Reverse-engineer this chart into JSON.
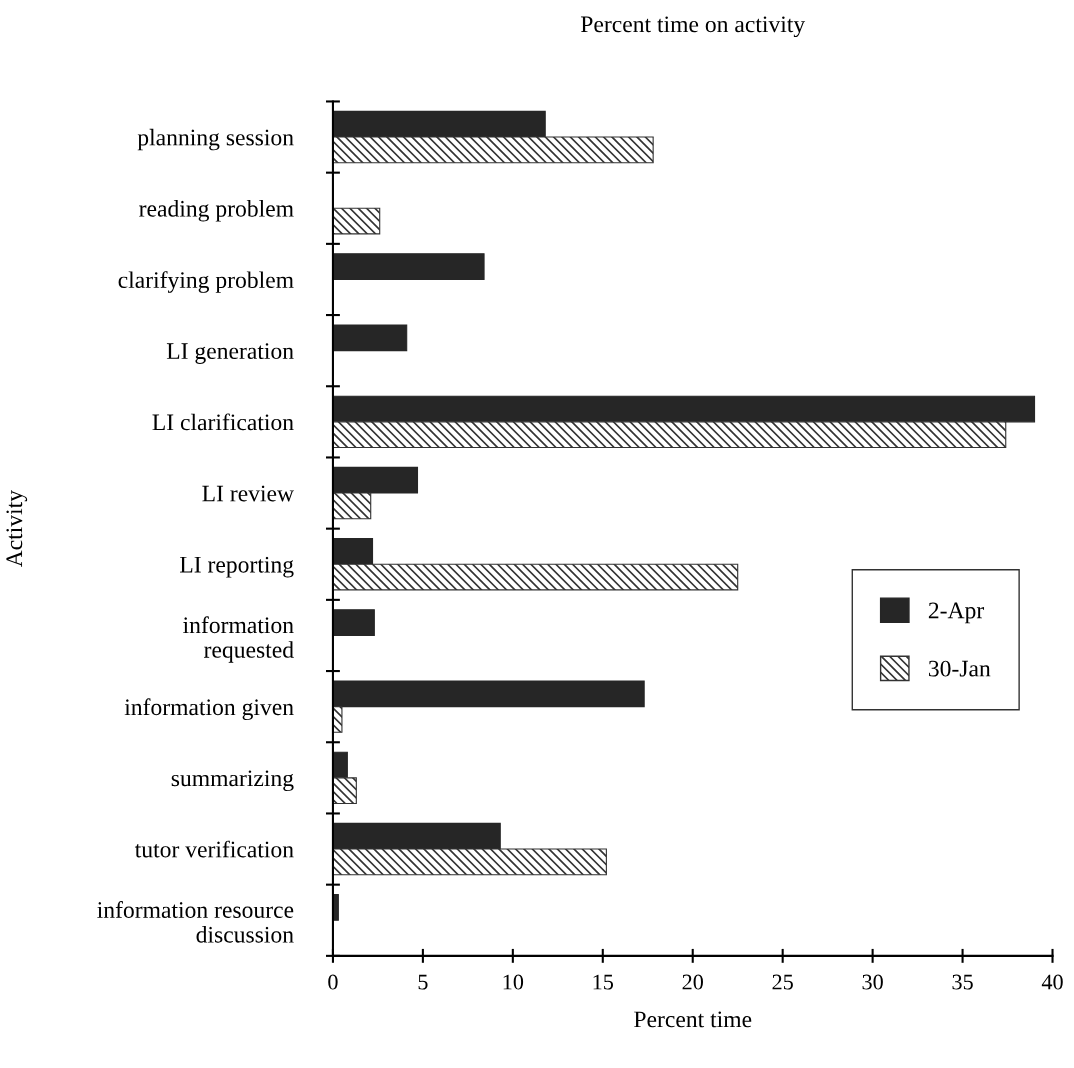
{
  "chart_data": {
    "type": "bar",
    "orientation": "horizontal",
    "title": "Percent time on activity",
    "xlabel": "Percent time",
    "ylabel": "Activity",
    "categories": [
      "planning session",
      "reading problem",
      "clarifying problem",
      "LI generation",
      "LI clarification",
      "LI review",
      "LI reporting",
      "information\nrequested",
      "information given",
      "summarizing",
      "tutor verification",
      "information resource\ndiscussion"
    ],
    "series": [
      {
        "name": "2-Apr",
        "color": "#262626",
        "values": [
          11.8,
          0,
          8.4,
          4.1,
          39.0,
          4.7,
          2.2,
          2.3,
          17.3,
          0.8,
          9.3,
          0.3
        ]
      },
      {
        "name": "30-Jan",
        "color": "#333333",
        "values": [
          17.8,
          2.6,
          0,
          0,
          37.4,
          2.1,
          22.5,
          0,
          0.5,
          1.3,
          15.2,
          0
        ]
      }
    ],
    "xlim": [
      0,
      40
    ],
    "xticks": [
      0,
      5,
      10,
      15,
      20,
      25,
      30,
      35,
      40
    ],
    "grid": false,
    "legend": "right"
  }
}
